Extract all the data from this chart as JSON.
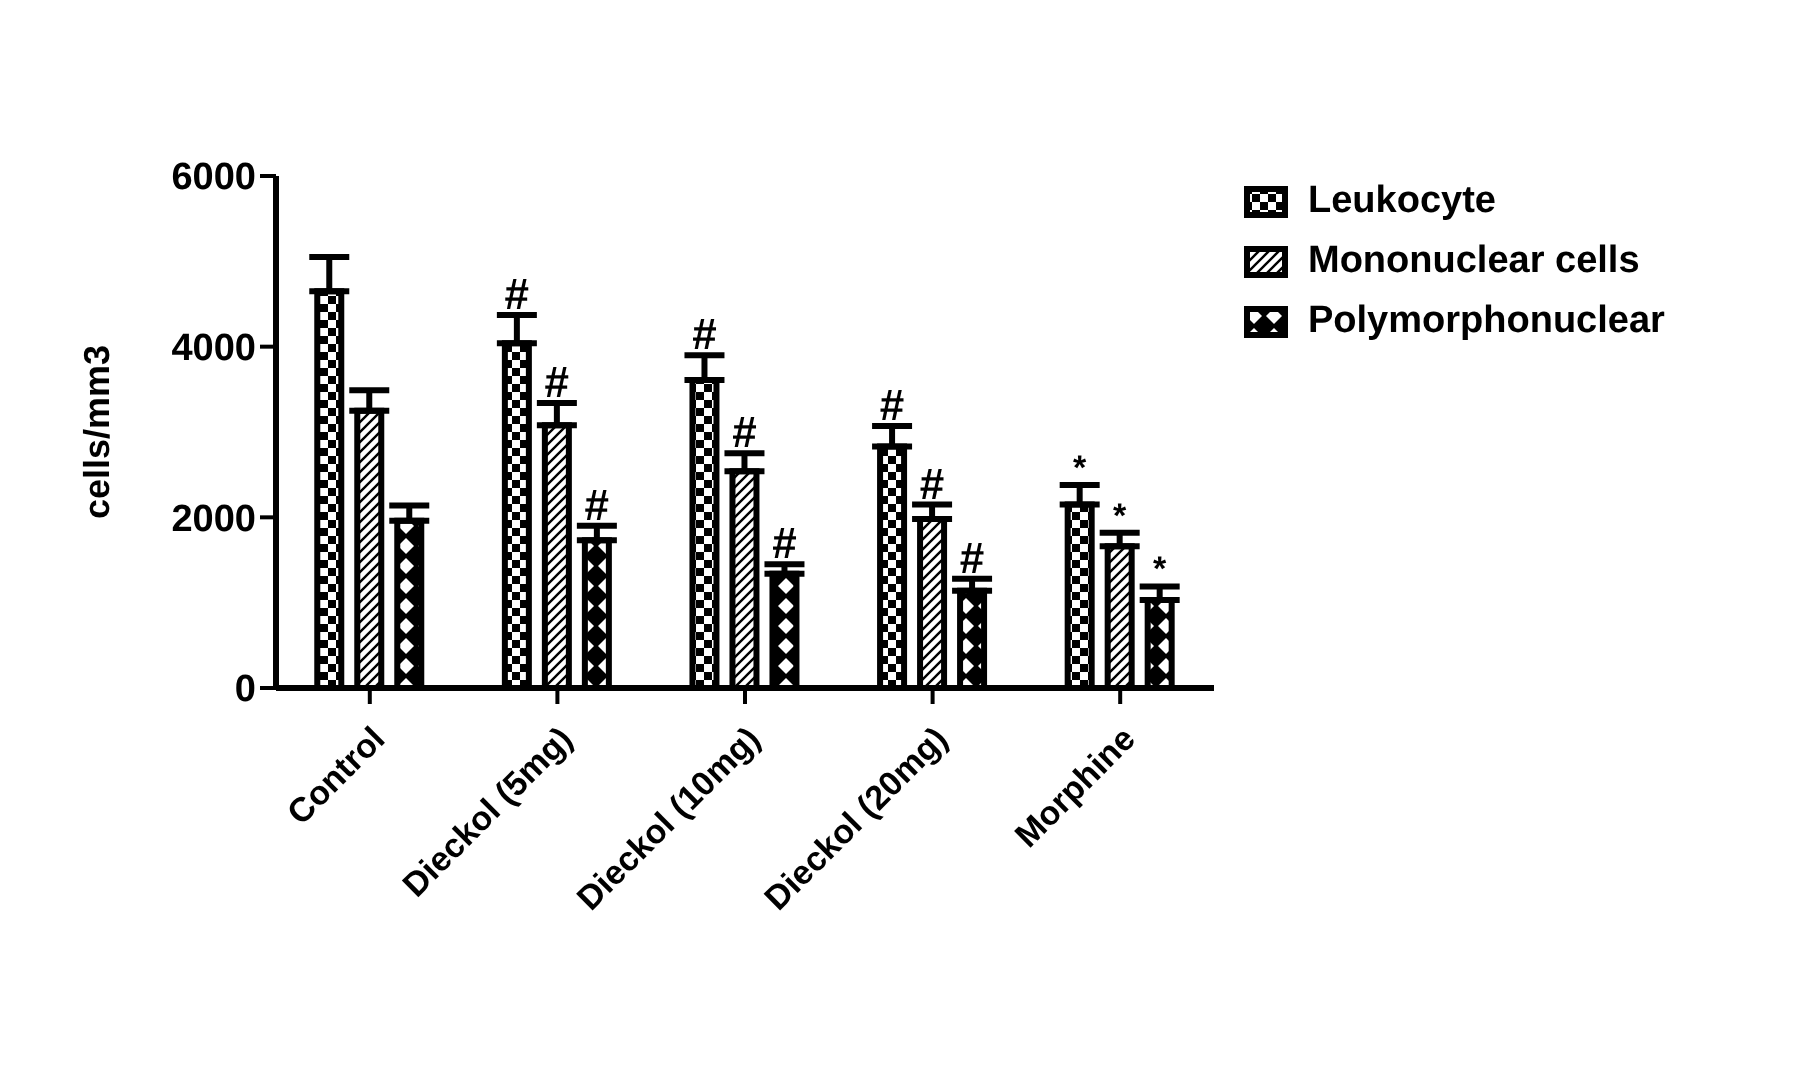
{
  "chart_data": {
    "type": "bar",
    "ylabel": "cells/mm3",
    "categories": [
      "Control",
      "Dieckol (5mg)",
      "Dieckol (10mg)",
      "Dieckol (20mg)",
      "Morphine"
    ],
    "series": [
      {
        "name": "Leukocyte",
        "color": "#000000",
        "values": [
          4650,
          4040,
          3610,
          2830,
          2150
        ],
        "errors": [
          [
            4650,
            5050
          ],
          [
            4040,
            4370
          ],
          [
            3610,
            3900
          ],
          [
            2830,
            3070
          ],
          [
            2150,
            2380
          ]
        ],
        "value_labels": [
          null,
          "#",
          "#",
          "#",
          "*"
        ]
      },
      {
        "name": "Mononuclear cells",
        "color": "#000000",
        "values": [
          3250,
          3080,
          2540,
          1980,
          1660
        ],
        "errors": [
          [
            3250,
            3490
          ],
          [
            3080,
            3340
          ],
          [
            2540,
            2750
          ],
          [
            1980,
            2150
          ],
          [
            1660,
            1820
          ]
        ],
        "value_labels": [
          null,
          "#",
          "#",
          "#",
          "*"
        ]
      },
      {
        "name": "Polymorphonuclear",
        "color": "#000000",
        "values": [
          1960,
          1730,
          1340,
          1140,
          1030
        ],
        "errors": [
          [
            1960,
            2140
          ],
          [
            1730,
            1900
          ],
          [
            1340,
            1450
          ],
          [
            1140,
            1280
          ],
          [
            1030,
            1190
          ]
        ],
        "value_labels": [
          null,
          "#",
          "#",
          "#",
          "*"
        ]
      }
    ],
    "ylim": [
      0,
      6000
    ],
    "yticks": [
      0,
      2000,
      4000,
      6000
    ],
    "grid": false,
    "legend": "top right"
  }
}
